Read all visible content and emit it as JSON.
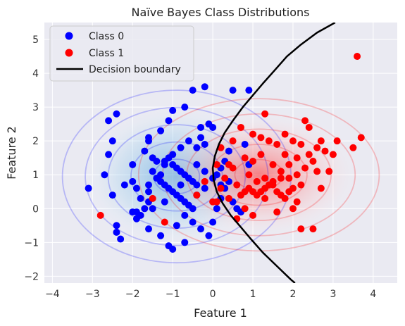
{
  "chart_data": {
    "type": "scatter",
    "title": "Naïve Bayes Class Distributions",
    "xlabel": "Feature 1",
    "ylabel": "Feature 2",
    "xlim": [
      -4.2,
      4.6
    ],
    "ylim": [
      -2.2,
      5.5
    ],
    "xticks": [
      -4,
      -3,
      -2,
      -1,
      0,
      1,
      2,
      3,
      4
    ],
    "yticks": [
      -2,
      -1,
      0,
      1,
      2,
      3,
      4,
      5
    ],
    "grid": true,
    "legend_position": "top-left",
    "colors": {
      "background": "#eaeaf2",
      "grid": "#ffffff",
      "class0": "#0000ff",
      "class1": "#ff0000",
      "boundary": "#000000"
    },
    "legend": [
      {
        "label": "Class 0",
        "kind": "marker",
        "color": "#0000ff"
      },
      {
        "label": "Class 1",
        "kind": "marker",
        "color": "#ff0000"
      },
      {
        "label": "Decision boundary",
        "kind": "line",
        "color": "#000000"
      }
    ],
    "gaussians": [
      {
        "class": "Class 0",
        "mean": [
          -0.9,
          0.95
        ],
        "std": [
          0.95,
          0.85
        ],
        "color": "#0000ff",
        "fill": "#3a9bd8",
        "levels": [
          0.6,
          1.2,
          1.8,
          2.4,
          3.0
        ]
      },
      {
        "class": "Class 1",
        "mean": [
          1.15,
          1.0
        ],
        "std": [
          1.0,
          0.75
        ],
        "color": "#ff0000",
        "fill": "#ff3333",
        "levels": [
          0.6,
          1.2,
          1.8,
          2.4,
          3.0
        ]
      }
    ],
    "series": [
      {
        "name": "Class 0",
        "color": "#0000ff",
        "points": [
          [
            -3.1,
            0.6
          ],
          [
            -2.7,
            1.0
          ],
          [
            -2.5,
            0.4
          ],
          [
            -2.4,
            -0.5
          ],
          [
            -2.4,
            -0.7
          ],
          [
            -2.3,
            -0.9
          ],
          [
            -2.6,
            1.6
          ],
          [
            -2.5,
            2.0
          ],
          [
            -2.6,
            2.6
          ],
          [
            -2.4,
            2.8
          ],
          [
            -2.2,
            0.7
          ],
          [
            -2.0,
            1.3
          ],
          [
            -1.9,
            0.6
          ],
          [
            -1.9,
            -0.1
          ],
          [
            -1.8,
            -0.2
          ],
          [
            -1.7,
            0.0
          ],
          [
            -1.6,
            0.2
          ],
          [
            -1.6,
            0.5
          ],
          [
            -1.7,
            1.7
          ],
          [
            -1.6,
            2.0
          ],
          [
            -1.6,
            2.1
          ],
          [
            -1.5,
            1.5
          ],
          [
            -1.5,
            1.1
          ],
          [
            -1.4,
            0.9
          ],
          [
            -1.3,
            0.8
          ],
          [
            -1.2,
            0.7
          ],
          [
            -1.1,
            0.6
          ],
          [
            -1.0,
            0.5
          ],
          [
            -0.9,
            0.4
          ],
          [
            -0.8,
            0.3
          ],
          [
            -0.7,
            0.2
          ],
          [
            -0.6,
            0.1
          ],
          [
            -0.5,
            0.0
          ],
          [
            -1.2,
            1.4
          ],
          [
            -1.1,
            1.5
          ],
          [
            -1.0,
            1.3
          ],
          [
            -0.9,
            1.2
          ],
          [
            -0.8,
            1.1
          ],
          [
            -0.7,
            1.0
          ],
          [
            -0.6,
            0.9
          ],
          [
            -0.5,
            0.8
          ],
          [
            -0.4,
            0.7
          ],
          [
            -1.3,
            2.3
          ],
          [
            -1.1,
            2.6
          ],
          [
            -1.0,
            2.9
          ],
          [
            -0.7,
            3.0
          ],
          [
            -0.5,
            3.5
          ],
          [
            -0.3,
            2.4
          ],
          [
            -0.1,
            2.5
          ],
          [
            -0.2,
            1.9
          ],
          [
            -0.4,
            1.8
          ],
          [
            -0.6,
            2.0
          ],
          [
            -0.8,
            1.8
          ],
          [
            -1.0,
            1.6
          ],
          [
            -1.2,
            1.3
          ],
          [
            -1.3,
            1.0
          ],
          [
            -1.6,
            0.7
          ],
          [
            -1.8,
            0.3
          ],
          [
            -2.0,
            -0.1
          ],
          [
            -1.9,
            -0.3
          ],
          [
            -1.6,
            -0.6
          ],
          [
            -1.3,
            -0.8
          ],
          [
            -1.1,
            -1.1
          ],
          [
            -0.7,
            -1.0
          ],
          [
            -0.9,
            -0.5
          ],
          [
            -0.7,
            -0.2
          ],
          [
            -0.5,
            -0.4
          ],
          [
            -0.3,
            -0.6
          ],
          [
            -0.1,
            -0.8
          ],
          [
            0.0,
            -0.4
          ],
          [
            0.1,
            0.0
          ],
          [
            0.2,
            0.3
          ],
          [
            0.3,
            0.6
          ],
          [
            0.4,
            0.8
          ],
          [
            0.1,
            1.0
          ],
          [
            0.3,
            1.4
          ],
          [
            0.4,
            1.7
          ],
          [
            0.0,
            2.4
          ],
          [
            0.2,
            1.2
          ],
          [
            -0.2,
            0.6
          ],
          [
            0.5,
            0.2
          ],
          [
            0.6,
            0.0
          ],
          [
            0.7,
            -0.1
          ],
          [
            0.8,
            1.9
          ],
          [
            0.9,
            1.3
          ],
          [
            -0.2,
            3.6
          ],
          [
            0.5,
            3.5
          ],
          [
            0.9,
            3.5
          ],
          [
            -1.0,
            -1.2
          ],
          [
            -1.2,
            0.2
          ],
          [
            -2.0,
            0.8
          ],
          [
            -0.4,
            1.3
          ],
          [
            -0.2,
            1.1
          ],
          [
            0.0,
            0.9
          ],
          [
            0.2,
            0.7
          ],
          [
            -0.4,
            0.4
          ],
          [
            -0.8,
            0.7
          ],
          [
            -1.4,
            1.4
          ],
          [
            -0.3,
            2.1
          ],
          [
            -1.5,
            0.0
          ]
        ]
      },
      {
        "name": "Class 1",
        "color": "#ff0000",
        "points": [
          [
            -2.8,
            -0.2
          ],
          [
            -1.5,
            0.3
          ],
          [
            -1.2,
            -0.4
          ],
          [
            0.1,
            0.2
          ],
          [
            0.3,
            0.9
          ],
          [
            0.5,
            1.2
          ],
          [
            0.6,
            0.7
          ],
          [
            0.7,
            0.4
          ],
          [
            0.8,
            0.5
          ],
          [
            0.9,
            0.6
          ],
          [
            1.0,
            0.5
          ],
          [
            1.1,
            0.4
          ],
          [
            1.2,
            0.5
          ],
          [
            1.3,
            0.6
          ],
          [
            1.4,
            0.7
          ],
          [
            1.5,
            0.8
          ],
          [
            1.6,
            0.5
          ],
          [
            1.7,
            0.4
          ],
          [
            1.8,
            0.3
          ],
          [
            1.9,
            0.9
          ],
          [
            2.0,
            0.6
          ],
          [
            2.1,
            1.0
          ],
          [
            2.2,
            0.7
          ],
          [
            2.3,
            1.2
          ],
          [
            2.4,
            1.6
          ],
          [
            2.5,
            1.4
          ],
          [
            2.6,
            1.8
          ],
          [
            2.7,
            0.6
          ],
          [
            2.8,
            1.7
          ],
          [
            3.0,
            1.6
          ],
          [
            3.1,
            2.0
          ],
          [
            3.5,
            1.8
          ],
          [
            3.7,
            2.1
          ],
          [
            3.6,
            4.5
          ],
          [
            0.7,
            2.4
          ],
          [
            1.0,
            2.2
          ],
          [
            1.2,
            2.1
          ],
          [
            1.4,
            2.0
          ],
          [
            1.6,
            1.9
          ],
          [
            1.8,
            2.2
          ],
          [
            2.0,
            2.0
          ],
          [
            2.2,
            1.9
          ],
          [
            2.4,
            2.4
          ],
          [
            2.3,
            2.6
          ],
          [
            1.3,
            2.8
          ],
          [
            0.8,
            1.5
          ],
          [
            1.0,
            1.4
          ],
          [
            1.2,
            1.6
          ],
          [
            1.5,
            1.3
          ],
          [
            1.7,
            1.1
          ],
          [
            1.9,
            1.3
          ],
          [
            2.1,
            1.5
          ],
          [
            0.4,
            1.3
          ],
          [
            0.2,
            0.6
          ],
          [
            0.0,
            0.2
          ],
          [
            -0.4,
            0.4
          ],
          [
            0.6,
            -0.3
          ],
          [
            1.0,
            -0.2
          ],
          [
            1.6,
            -0.1
          ],
          [
            2.2,
            -0.6
          ],
          [
            2.5,
            -0.6
          ],
          [
            2.0,
            0.0
          ],
          [
            0.2,
            1.8
          ],
          [
            0.5,
            2.0
          ],
          [
            0.9,
            1.0
          ],
          [
            1.1,
            0.8
          ],
          [
            1.3,
            0.9
          ],
          [
            1.5,
            0.7
          ],
          [
            1.7,
            0.9
          ],
          [
            1.9,
            0.5
          ],
          [
            2.1,
            0.2
          ],
          [
            2.6,
            1.1
          ],
          [
            2.9,
            1.1
          ],
          [
            0.1,
            1.3
          ],
          [
            -0.2,
            0.8
          ],
          [
            0.4,
            0.3
          ],
          [
            0.8,
            0.0
          ],
          [
            1.3,
            0.3
          ],
          [
            1.8,
            1.6
          ],
          [
            2.7,
            2.0
          ]
        ]
      }
    ],
    "decision_boundary": {
      "points": [
        [
          3.05,
          5.5
        ],
        [
          2.6,
          5.2
        ],
        [
          2.2,
          4.85
        ],
        [
          1.85,
          4.5
        ],
        [
          1.55,
          4.1
        ],
        [
          1.25,
          3.7
        ],
        [
          1.0,
          3.35
        ],
        [
          0.75,
          3.0
        ],
        [
          0.5,
          2.6
        ],
        [
          0.3,
          2.25
        ],
        [
          0.15,
          1.9
        ],
        [
          0.05,
          1.55
        ],
        [
          0.0,
          1.2
        ],
        [
          0.02,
          0.85
        ],
        [
          0.1,
          0.5
        ],
        [
          0.25,
          0.15
        ],
        [
          0.45,
          -0.2
        ],
        [
          0.7,
          -0.55
        ],
        [
          0.95,
          -0.9
        ],
        [
          1.25,
          -1.3
        ],
        [
          1.6,
          -1.7
        ],
        [
          1.95,
          -2.1
        ],
        [
          2.05,
          -2.2
        ]
      ]
    }
  }
}
